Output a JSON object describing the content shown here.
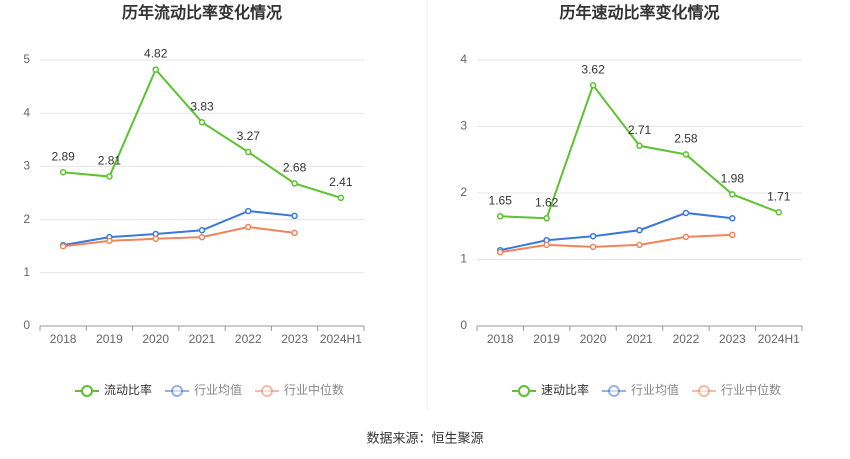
{
  "chart_data": [
    {
      "type": "line",
      "title": "历年流动比率变化情况",
      "categories": [
        "2018",
        "2019",
        "2020",
        "2021",
        "2022",
        "2023",
        "2024H1"
      ],
      "ylim": [
        0,
        5
      ],
      "yticks": [
        0,
        1,
        2,
        3,
        4,
        5
      ],
      "grid": true,
      "series": [
        {
          "name": "流动比率",
          "color": "#5ac32e",
          "values": [
            2.89,
            2.81,
            4.82,
            3.83,
            3.27,
            2.68,
            2.41
          ]
        },
        {
          "name": "行业均值",
          "color": "#3b78d8",
          "values": [
            1.52,
            1.67,
            1.73,
            1.8,
            2.16,
            2.07,
            null
          ]
        },
        {
          "name": "行业中位数",
          "color": "#f0845a",
          "values": [
            1.5,
            1.6,
            1.64,
            1.67,
            1.86,
            1.75,
            null
          ]
        }
      ]
    },
    {
      "type": "line",
      "title": "历年速动比率变化情况",
      "categories": [
        "2018",
        "2019",
        "2020",
        "2021",
        "2022",
        "2023",
        "2024H1"
      ],
      "ylim": [
        0,
        4
      ],
      "yticks": [
        0,
        1,
        2,
        3,
        4
      ],
      "grid": true,
      "series": [
        {
          "name": "速动比率",
          "color": "#5ac32e",
          "values": [
            1.65,
            1.62,
            3.62,
            2.71,
            2.58,
            1.98,
            1.71
          ]
        },
        {
          "name": "行业均值",
          "color": "#3b78d8",
          "values": [
            1.14,
            1.29,
            1.35,
            1.44,
            1.7,
            1.62,
            null
          ]
        },
        {
          "name": "行业中位数",
          "color": "#f0845a",
          "values": [
            1.11,
            1.22,
            1.19,
            1.22,
            1.34,
            1.37,
            null
          ]
        }
      ]
    }
  ],
  "source": "数据来源：恒生聚源"
}
